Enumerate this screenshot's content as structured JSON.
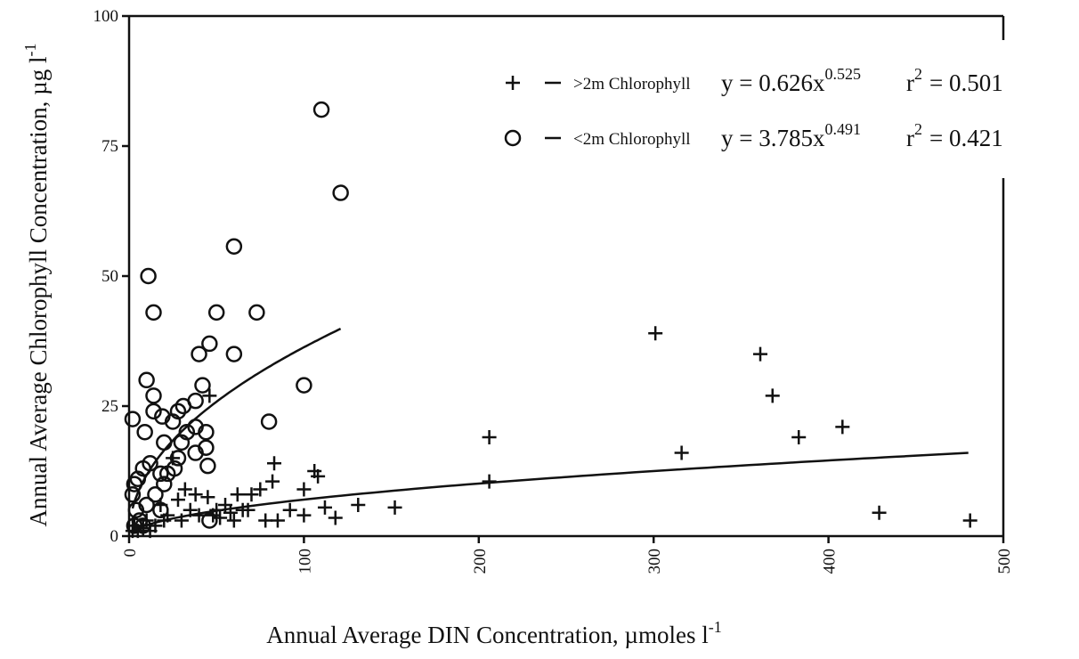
{
  "chart_data": {
    "type": "scatter",
    "xlabel": {
      "text": "Annual Average DIN Concentration, µmoles l",
      "sup": "-1"
    },
    "ylabel": {
      "text": "Annual Average Chlorophyll Concentration, µg l",
      "sup": "-1"
    },
    "xlim": [
      0,
      500
    ],
    "xticks": [
      0,
      100,
      200,
      300,
      400,
      500
    ],
    "ylim": [
      0,
      100
    ],
    "yticks": [
      0,
      25,
      50,
      75,
      100
    ],
    "series": [
      {
        "name": ">2m Chlorophyll",
        "marker": "plus",
        "color": "#111111",
        "equation": "y = 0.626x",
        "equation_exp": "0.525",
        "r2_base": "r",
        "r2_exp": "2",
        "r2_value": "= 0.501",
        "fit": {
          "a": 0.626,
          "b": 0.525,
          "x_range": [
            2,
            480
          ]
        },
        "x": [
          301,
          361,
          368,
          383,
          408,
          316,
          206,
          206,
          429,
          481,
          152,
          131,
          118,
          112,
          108,
          106,
          100,
          100,
          92,
          85,
          82,
          83,
          78,
          75,
          70,
          68,
          62,
          60,
          55,
          50,
          46,
          45,
          40,
          38,
          35,
          32,
          30,
          28,
          25,
          22,
          20,
          18,
          15,
          12,
          10,
          8,
          5,
          3,
          2,
          65,
          58,
          52,
          48
        ],
        "y": [
          39,
          35,
          27,
          19,
          21,
          16,
          19,
          10.5,
          4.5,
          3,
          5.5,
          6,
          3.5,
          5.5,
          11.5,
          12.5,
          9,
          4,
          5,
          3,
          10.5,
          14,
          3,
          9,
          8,
          5,
          8,
          3,
          6,
          5,
          27,
          7.5,
          4,
          8,
          5,
          9,
          3,
          7,
          15,
          4,
          3,
          6,
          2,
          1,
          3,
          1.5,
          1,
          2,
          1,
          5,
          4.5,
          3.5,
          4
        ]
      },
      {
        "name": "<2m Chlorophyll",
        "marker": "circle",
        "color": "#111111",
        "equation": "y = 3.785x",
        "equation_exp": "0.491",
        "r2_base": "r",
        "r2_exp": "2",
        "r2_value": "= 0.421",
        "fit": {
          "a": 3.785,
          "b": 0.491,
          "x_range": [
            2,
            121
          ]
        },
        "x": [
          110,
          121,
          60,
          11,
          14,
          50,
          73,
          60,
          46,
          40,
          10,
          14,
          42,
          100,
          14,
          19,
          2,
          9,
          28,
          31,
          25,
          20,
          30,
          38,
          44,
          44,
          45,
          38,
          26,
          22,
          18,
          12,
          8,
          5,
          3,
          2,
          4,
          6,
          8,
          3,
          80,
          38,
          46,
          15,
          18,
          10,
          20,
          33,
          28
        ],
        "y": [
          82,
          66,
          55.7,
          50,
          43,
          43,
          43,
          35,
          37,
          35,
          30,
          27,
          29,
          29,
          24,
          23,
          22.5,
          20,
          24,
          25,
          22,
          18,
          18,
          21,
          20,
          17,
          13.5,
          16,
          13,
          12,
          12,
          14,
          13,
          11,
          10,
          8,
          5,
          3,
          2,
          2,
          22,
          26,
          3,
          8,
          5,
          6,
          10,
          20,
          15
        ]
      }
    ]
  }
}
